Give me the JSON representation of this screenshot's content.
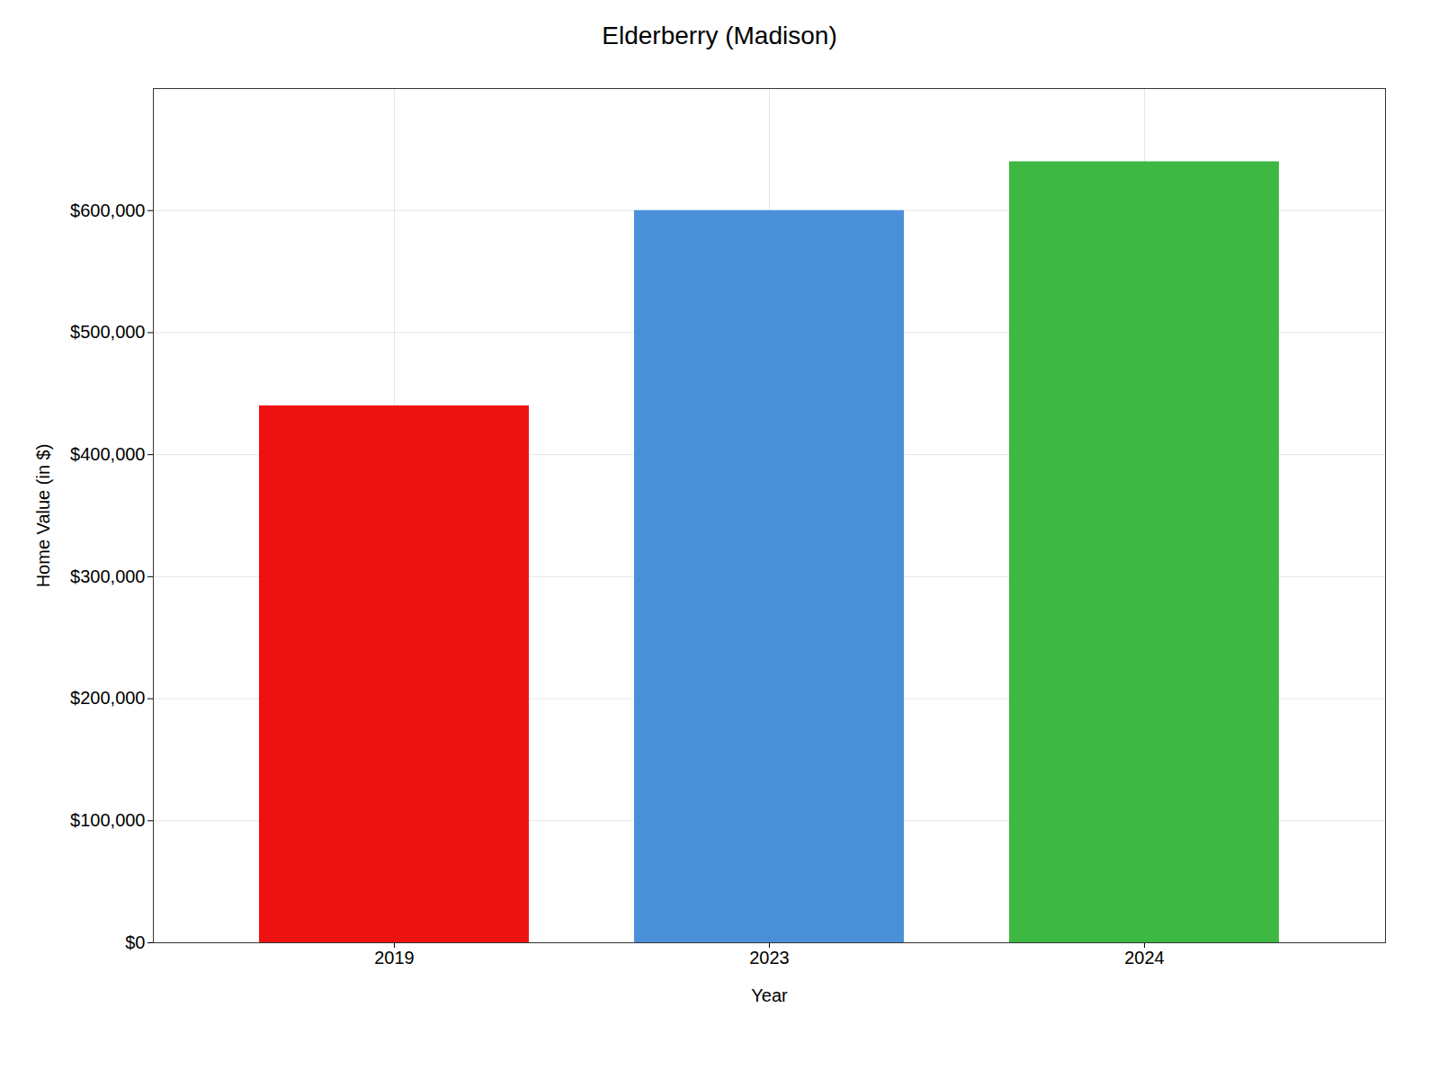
{
  "chart_data": {
    "type": "bar",
    "title": "Elderberry (Madison)",
    "xlabel": "Year",
    "ylabel": "Home Value (in $)",
    "categories": [
      "2019",
      "2023",
      "2024"
    ],
    "values": [
      440000,
      600000,
      640000
    ],
    "colors": [
      "#ee1111",
      "#4a90d9",
      "#3cb843"
    ],
    "ylim": [
      0,
      700000
    ],
    "yticks": [
      {
        "value": 0,
        "label": "$0"
      },
      {
        "value": 100000,
        "label": "$100,000"
      },
      {
        "value": 200000,
        "label": "$200,000"
      },
      {
        "value": 300000,
        "label": "$300,000"
      },
      {
        "value": 400000,
        "label": "$400,000"
      },
      {
        "value": 500000,
        "label": "$500,000"
      },
      {
        "value": 600000,
        "label": "$600,000"
      }
    ],
    "grid": true
  }
}
